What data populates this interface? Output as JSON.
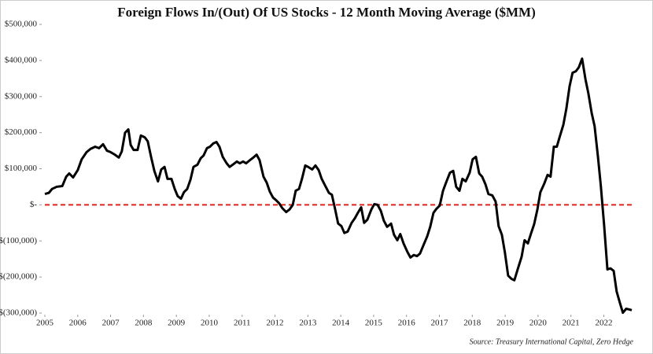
{
  "chart_data": {
    "type": "line",
    "title": "Foreign Flows In/(Out) Of US Stocks  - 12 Month Moving Average ($MM)",
    "source": "Source: Treasury International Capital, Zero Hedge",
    "color": "#000000",
    "reference_line": {
      "value": 0,
      "color": "#e8201a",
      "dashed": true
    },
    "xlim": [
      2005,
      2022.85
    ],
    "xticks": [
      2005,
      2006,
      2007,
      2008,
      2009,
      2010,
      2011,
      2012,
      2013,
      2014,
      2015,
      2016,
      2017,
      2018,
      2019,
      2020,
      2021,
      2022
    ],
    "ylim": [
      -300000,
      500000
    ],
    "yticks": [
      {
        "value": -300000,
        "label": "$(300,000)"
      },
      {
        "value": -200000,
        "label": "$(200,000)"
      },
      {
        "value": -100000,
        "label": "$(100,000)"
      },
      {
        "value": 0,
        "label": "$-"
      },
      {
        "value": 100000,
        "label": "$100,000"
      },
      {
        "value": 200000,
        "label": "$200,000"
      },
      {
        "value": 300000,
        "label": "$300,000"
      },
      {
        "value": 400000,
        "label": "$400,000"
      },
      {
        "value": 500000,
        "label": "$500,000"
      }
    ],
    "x": [
      2005.0,
      2005.12,
      2005.22,
      2005.36,
      2005.53,
      2005.65,
      2005.74,
      2005.86,
      2006.0,
      2006.12,
      2006.27,
      2006.39,
      2006.53,
      2006.65,
      2006.77,
      2006.89,
      2007.0,
      2007.13,
      2007.25,
      2007.34,
      2007.44,
      2007.54,
      2007.61,
      2007.7,
      2007.82,
      2007.92,
      2008.04,
      2008.13,
      2008.23,
      2008.33,
      2008.44,
      2008.54,
      2008.64,
      2008.73,
      2008.85,
      2008.95,
      2009.04,
      2009.14,
      2009.23,
      2009.33,
      2009.43,
      2009.52,
      2009.64,
      2009.74,
      2009.83,
      2009.93,
      2010.02,
      2010.12,
      2010.22,
      2010.31,
      2010.41,
      2010.53,
      2010.62,
      2010.74,
      2010.84,
      2010.93,
      2011.03,
      2011.12,
      2011.24,
      2011.34,
      2011.44,
      2011.53,
      2011.65,
      2011.75,
      2011.84,
      2011.94,
      2012.03,
      2012.13,
      2012.22,
      2012.34,
      2012.44,
      2012.54,
      2012.63,
      2012.73,
      2012.82,
      2012.92,
      2013.01,
      2013.13,
      2013.23,
      2013.33,
      2013.42,
      2013.52,
      2013.64,
      2013.73,
      2013.83,
      2013.92,
      2014.02,
      2014.11,
      2014.21,
      2014.33,
      2014.43,
      2014.52,
      2014.62,
      2014.71,
      2014.81,
      2014.93,
      2015.02,
      2015.12,
      2015.22,
      2015.31,
      2015.41,
      2015.53,
      2015.62,
      2015.72,
      2015.81,
      2015.91,
      2016.03,
      2016.12,
      2016.22,
      2016.32,
      2016.41,
      2016.51,
      2016.63,
      2016.72,
      2016.82,
      2016.91,
      2017.01,
      2017.11,
      2017.2,
      2017.32,
      2017.42,
      2017.51,
      2017.61,
      2017.7,
      2017.8,
      2017.92,
      2018.01,
      2018.11,
      2018.21,
      2018.3,
      2018.4,
      2018.49,
      2018.61,
      2018.71,
      2018.8,
      2018.9,
      2018.99,
      2019.09,
      2019.19,
      2019.28,
      2019.38,
      2019.5,
      2019.59,
      2019.69,
      2019.78,
      2019.88,
      2019.98,
      2020.07,
      2020.19,
      2020.29,
      2020.38,
      2020.48,
      2020.57,
      2020.67,
      2020.77,
      2020.86,
      2020.96,
      2021.05,
      2021.15,
      2021.24,
      2021.34,
      2021.44,
      2021.53,
      2021.63,
      2021.72,
      2021.82,
      2021.91,
      2022.01,
      2022.11,
      2022.2,
      2022.3,
      2022.39,
      2022.49,
      2022.58,
      2022.68,
      2022.78,
      2022.85
    ],
    "values": [
      30000,
      33000,
      44000,
      50000,
      52000,
      78000,
      87000,
      76000,
      96000,
      126000,
      146000,
      155000,
      161000,
      157000,
      168000,
      150000,
      146000,
      139000,
      131000,
      148000,
      200000,
      209000,
      166000,
      152000,
      152000,
      192000,
      187000,
      176000,
      133000,
      94000,
      65000,
      98000,
      105000,
      72000,
      72000,
      44000,
      24000,
      17000,
      35000,
      44000,
      70000,
      105000,
      111000,
      129000,
      137000,
      157000,
      161000,
      170000,
      174000,
      161000,
      133000,
      115000,
      105000,
      113000,
      120000,
      115000,
      120000,
      115000,
      124000,
      131000,
      139000,
      124000,
      78000,
      61000,
      37000,
      20000,
      13000,
      4000,
      -9000,
      -20000,
      -13000,
      0,
      39000,
      44000,
      72000,
      109000,
      105000,
      98000,
      109000,
      96000,
      72000,
      54000,
      33000,
      28000,
      -13000,
      -52000,
      -59000,
      -78000,
      -74000,
      -50000,
      -37000,
      -22000,
      -7000,
      -50000,
      -41000,
      -13000,
      2000,
      0,
      -17000,
      -44000,
      -61000,
      -52000,
      -83000,
      -98000,
      -81000,
      -107000,
      -131000,
      -146000,
      -139000,
      -142000,
      -135000,
      -113000,
      -87000,
      -61000,
      -22000,
      -11000,
      -2000,
      39000,
      61000,
      89000,
      94000,
      50000,
      39000,
      72000,
      65000,
      89000,
      126000,
      133000,
      87000,
      78000,
      57000,
      30000,
      26000,
      9000,
      -59000,
      -83000,
      -131000,
      -196000,
      -205000,
      -209000,
      -179000,
      -144000,
      -98000,
      -107000,
      -81000,
      -54000,
      -13000,
      35000,
      59000,
      83000,
      78000,
      161000,
      161000,
      192000,
      222000,
      266000,
      329000,
      366000,
      370000,
      381000,
      405000,
      349000,
      309000,
      255000,
      218000,
      135000,
      52000,
      -57000,
      -179000,
      -176000,
      -183000,
      -240000,
      -272000,
      -299000,
      -288000,
      -290000,
      -292000
    ]
  }
}
